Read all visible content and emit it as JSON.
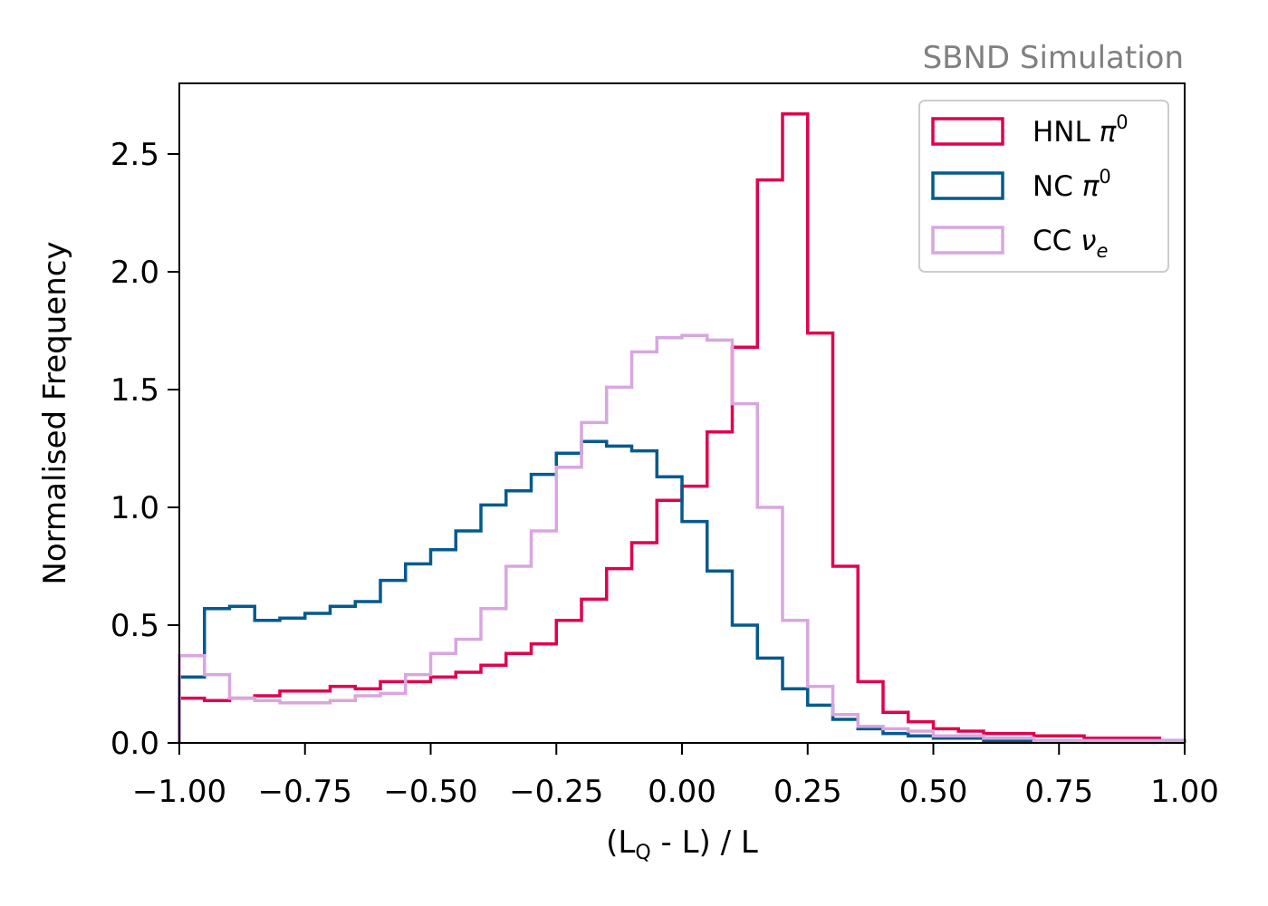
{
  "chart_data": {
    "type": "histogram-step",
    "watermark": "SBND Simulation",
    "xlabel_parts": {
      "open": "(L",
      "sub": "Q",
      "close": " - L) / L"
    },
    "ylabel": "Normalised Frequency",
    "xlim": [
      -1.0,
      1.0
    ],
    "ylim": [
      0.0,
      2.8
    ],
    "xticks": [
      -1.0,
      -0.75,
      -0.5,
      -0.25,
      0.0,
      0.25,
      0.5,
      0.75,
      1.0
    ],
    "xtick_labels": [
      "−1.00",
      "−0.75",
      "−0.50",
      "−0.25",
      "0.00",
      "0.25",
      "0.50",
      "0.75",
      "1.00"
    ],
    "yticks": [
      0.0,
      0.5,
      1.0,
      1.5,
      2.0,
      2.5
    ],
    "ytick_labels": [
      "0.0",
      "0.5",
      "1.0",
      "1.5",
      "2.0",
      "2.5"
    ],
    "bin_edges": [
      -1.0,
      -0.95,
      -0.9,
      -0.85,
      -0.8,
      -0.75,
      -0.7,
      -0.65,
      -0.6,
      -0.55,
      -0.5,
      -0.45,
      -0.4,
      -0.35,
      -0.3,
      -0.25,
      -0.2,
      -0.15,
      -0.1,
      -0.05,
      0.0,
      0.05,
      0.1,
      0.15,
      0.2,
      0.25,
      0.3,
      0.35,
      0.4,
      0.45,
      0.5,
      0.55,
      0.6,
      0.65,
      0.7,
      0.75,
      0.8,
      0.85,
      0.9,
      0.95,
      1.0
    ],
    "legend_position": "upper right",
    "series": [
      {
        "name": "HNL",
        "name_symbol": "π",
        "name_sup": "0",
        "color": "#e0004d",
        "values": [
          0.19,
          0.18,
          0.19,
          0.2,
          0.22,
          0.22,
          0.24,
          0.23,
          0.26,
          0.26,
          0.28,
          0.3,
          0.33,
          0.38,
          0.42,
          0.52,
          0.61,
          0.74,
          0.85,
          1.03,
          1.09,
          1.32,
          1.68,
          2.39,
          2.67,
          1.74,
          0.75,
          0.26,
          0.13,
          0.09,
          0.06,
          0.05,
          0.04,
          0.04,
          0.03,
          0.03,
          0.02,
          0.02,
          0.02,
          0.01
        ]
      },
      {
        "name": "NC",
        "name_symbol": "π",
        "name_sup": "0",
        "color": "#045a8d",
        "values": [
          0.28,
          0.57,
          0.58,
          0.52,
          0.53,
          0.55,
          0.58,
          0.6,
          0.69,
          0.76,
          0.82,
          0.9,
          1.01,
          1.07,
          1.14,
          1.23,
          1.28,
          1.26,
          1.24,
          1.13,
          0.94,
          0.73,
          0.5,
          0.36,
          0.23,
          0.16,
          0.1,
          0.06,
          0.04,
          0.03,
          0.02,
          0.02,
          0.01,
          0.01,
          0.01,
          0.01,
          0.01,
          0.01,
          0.01,
          0.01
        ]
      },
      {
        "name": "CC",
        "name_symbol": "ν",
        "name_sub": "e",
        "color": "#d8a6e0",
        "values": [
          0.37,
          0.29,
          0.19,
          0.18,
          0.17,
          0.17,
          0.18,
          0.2,
          0.21,
          0.29,
          0.38,
          0.44,
          0.57,
          0.75,
          0.9,
          1.17,
          1.36,
          1.51,
          1.66,
          1.72,
          1.73,
          1.71,
          1.44,
          1.0,
          0.52,
          0.24,
          0.12,
          0.07,
          0.06,
          0.05,
          0.03,
          0.03,
          0.02,
          0.02,
          0.01,
          0.01,
          0.01,
          0.01,
          0.01,
          0.01
        ]
      }
    ]
  }
}
